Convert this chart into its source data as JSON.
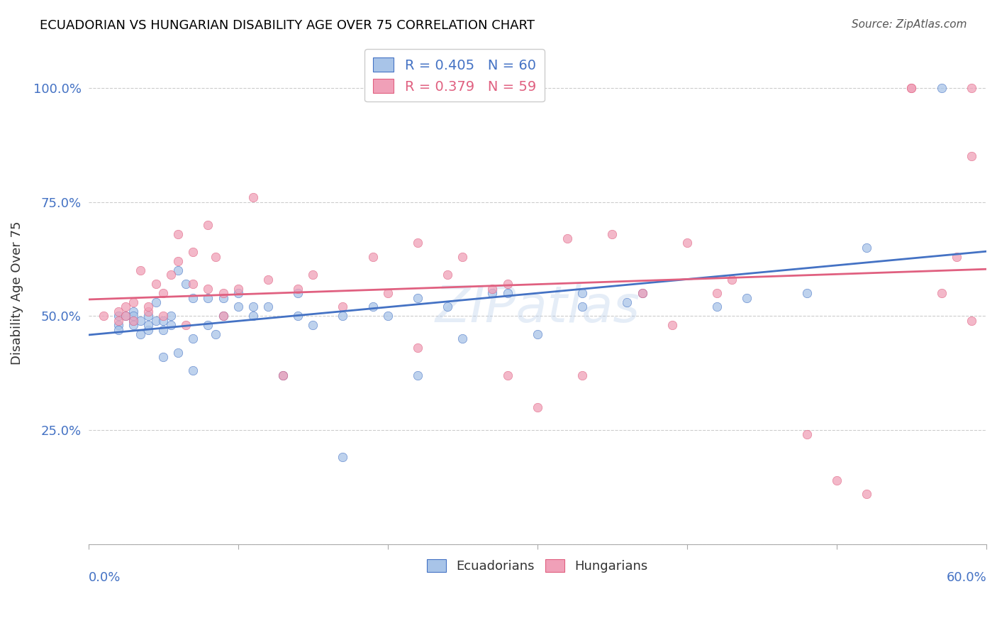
{
  "title": "ECUADORIAN VS HUNGARIAN DISABILITY AGE OVER 75 CORRELATION CHART",
  "source": "Source: ZipAtlas.com",
  "ylabel": "Disability Age Over 75",
  "legend_blue": "R = 0.405   N = 60",
  "legend_pink": "R = 0.379   N = 59",
  "watermark": "ZIPatlas",
  "xmin": 0.0,
  "xmax": 0.6,
  "ymin": 0.0,
  "ymax": 1.1,
  "yticks": [
    0.0,
    0.25,
    0.5,
    0.75,
    1.0
  ],
  "ytick_labels": [
    "",
    "25.0%",
    "50.0%",
    "75.0%",
    "100.0%"
  ],
  "blue_scatter_x": [
    0.02,
    0.02,
    0.02,
    0.025,
    0.03,
    0.03,
    0.03,
    0.03,
    0.035,
    0.035,
    0.04,
    0.04,
    0.04,
    0.045,
    0.045,
    0.05,
    0.05,
    0.05,
    0.055,
    0.055,
    0.06,
    0.06,
    0.065,
    0.07,
    0.07,
    0.07,
    0.08,
    0.08,
    0.085,
    0.09,
    0.09,
    0.1,
    0.1,
    0.11,
    0.11,
    0.12,
    0.13,
    0.14,
    0.14,
    0.15,
    0.17,
    0.17,
    0.19,
    0.2,
    0.22,
    0.22,
    0.24,
    0.25,
    0.27,
    0.28,
    0.3,
    0.33,
    0.33,
    0.36,
    0.37,
    0.42,
    0.44,
    0.48,
    0.52,
    0.57
  ],
  "blue_scatter_y": [
    0.48,
    0.5,
    0.47,
    0.5,
    0.49,
    0.48,
    0.51,
    0.5,
    0.49,
    0.46,
    0.5,
    0.47,
    0.48,
    0.49,
    0.53,
    0.49,
    0.47,
    0.41,
    0.48,
    0.5,
    0.6,
    0.42,
    0.57,
    0.54,
    0.45,
    0.38,
    0.48,
    0.54,
    0.46,
    0.5,
    0.54,
    0.52,
    0.55,
    0.5,
    0.52,
    0.52,
    0.37,
    0.55,
    0.5,
    0.48,
    0.5,
    0.19,
    0.52,
    0.5,
    0.54,
    0.37,
    0.52,
    0.45,
    0.55,
    0.55,
    0.46,
    0.52,
    0.55,
    0.53,
    0.55,
    0.52,
    0.54,
    0.55,
    0.65,
    1.0
  ],
  "pink_scatter_x": [
    0.01,
    0.02,
    0.02,
    0.025,
    0.025,
    0.03,
    0.03,
    0.035,
    0.04,
    0.04,
    0.045,
    0.05,
    0.05,
    0.055,
    0.06,
    0.06,
    0.065,
    0.07,
    0.07,
    0.08,
    0.08,
    0.085,
    0.09,
    0.09,
    0.1,
    0.11,
    0.12,
    0.13,
    0.14,
    0.15,
    0.17,
    0.19,
    0.2,
    0.22,
    0.22,
    0.24,
    0.25,
    0.27,
    0.28,
    0.28,
    0.3,
    0.32,
    0.33,
    0.35,
    0.37,
    0.39,
    0.4,
    0.42,
    0.43,
    0.48,
    0.5,
    0.52,
    0.55,
    0.55,
    0.57,
    0.58,
    0.59,
    0.59,
    0.59
  ],
  "pink_scatter_y": [
    0.5,
    0.49,
    0.51,
    0.5,
    0.52,
    0.49,
    0.53,
    0.6,
    0.51,
    0.52,
    0.57,
    0.5,
    0.55,
    0.59,
    0.62,
    0.68,
    0.48,
    0.57,
    0.64,
    0.7,
    0.56,
    0.63,
    0.5,
    0.55,
    0.56,
    0.76,
    0.58,
    0.37,
    0.56,
    0.59,
    0.52,
    0.63,
    0.55,
    0.66,
    0.43,
    0.59,
    0.63,
    0.56,
    0.37,
    0.57,
    0.3,
    0.67,
    0.37,
    0.68,
    0.55,
    0.48,
    0.66,
    0.55,
    0.58,
    0.24,
    0.14,
    0.11,
    1.0,
    1.0,
    0.55,
    0.63,
    1.0,
    0.85,
    0.49
  ],
  "blue_line_color": "#4472C4",
  "pink_line_color": "#E06080",
  "blue_scatter_color": "#A8C4E8",
  "pink_scatter_color": "#F0A0B8",
  "background_color": "#FFFFFF",
  "grid_color": "#CCCCCC",
  "title_color": "#000000",
  "axis_label_color": "#4472C4",
  "scatter_size": 80,
  "scatter_alpha": 0.75,
  "line_width": 2.0
}
